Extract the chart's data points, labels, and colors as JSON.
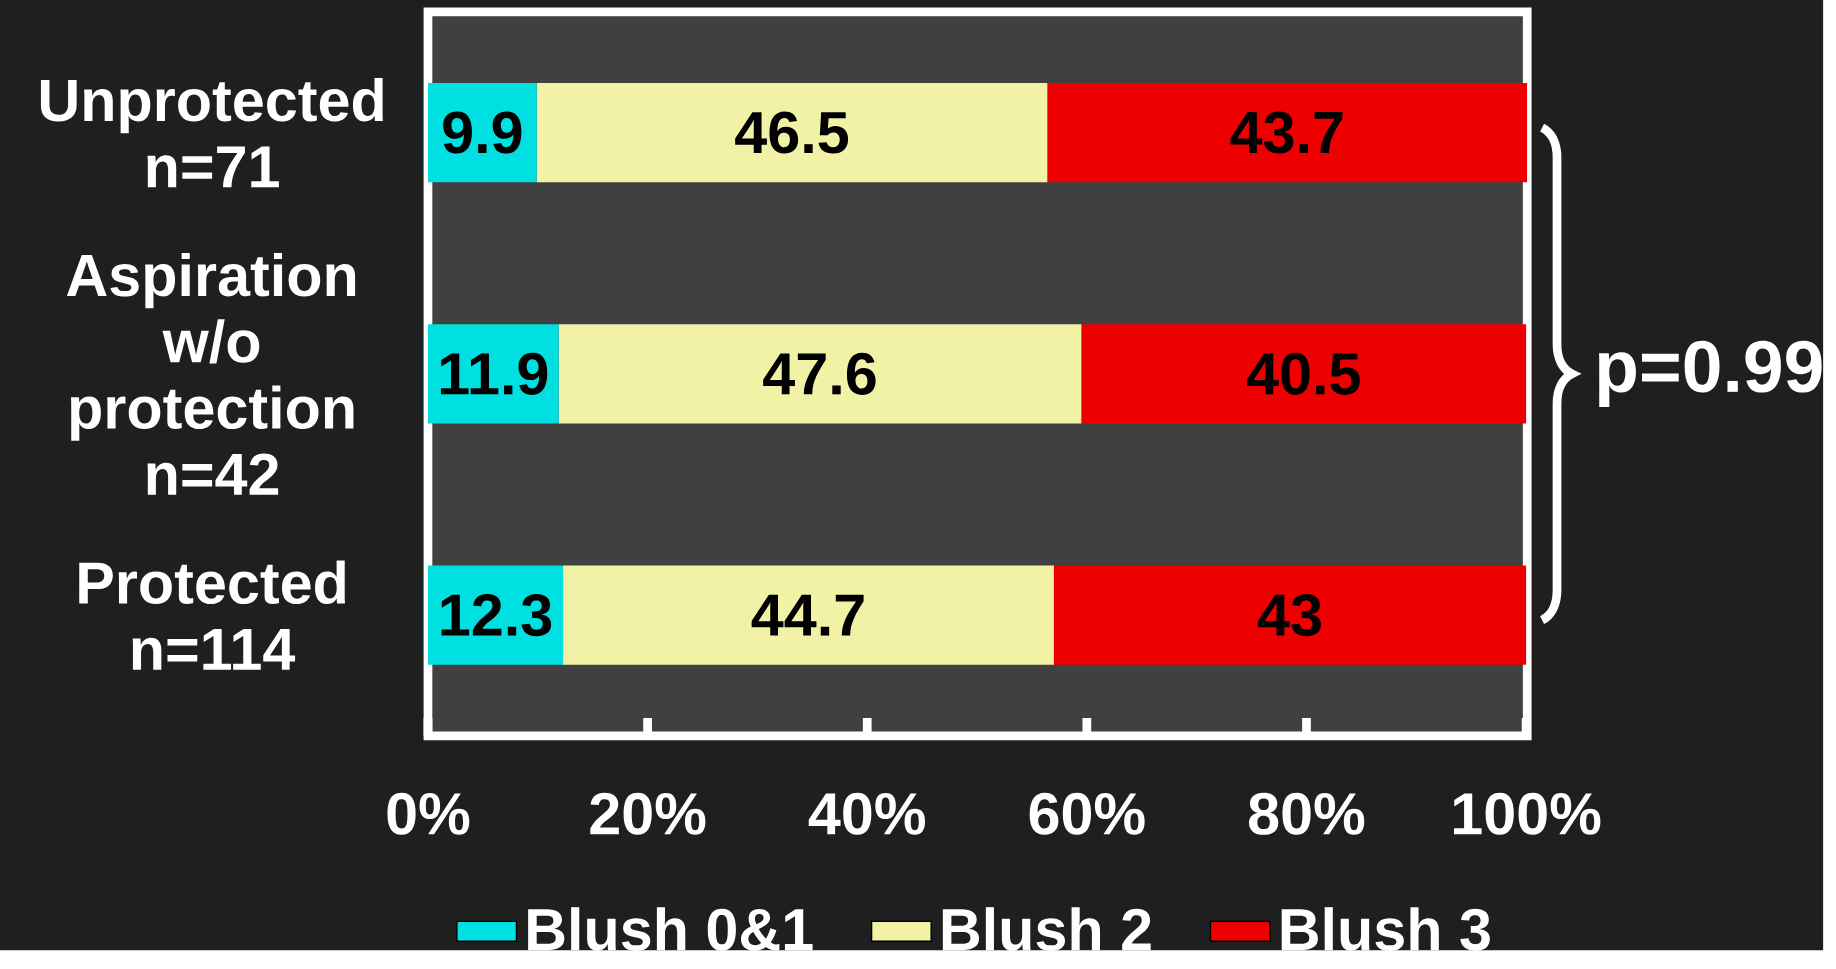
{
  "chart_data": {
    "type": "bar",
    "orientation": "horizontal",
    "stacked": true,
    "categories": [
      "Unprotected n=71",
      "Aspiration w/o protection n=42",
      "Protected n=114"
    ],
    "series": [
      {
        "name": "Blush 0&1",
        "color": "#00e0e0",
        "values": [
          9.9,
          11.9,
          12.3
        ]
      },
      {
        "name": "Blush 2",
        "color": "#f2f2a6",
        "values": [
          46.5,
          47.6,
          44.7
        ]
      },
      {
        "name": "Blush 3",
        "color": "#ee0000",
        "values": [
          43.7,
          40.5,
          43
        ]
      }
    ],
    "xlim": [
      0,
      100.1
    ],
    "xticks": [
      {
        "value": 0,
        "label": "0%"
      },
      {
        "value": 20,
        "label": "20%"
      },
      {
        "value": 40,
        "label": "40%"
      },
      {
        "value": 60,
        "label": "60%"
      },
      {
        "value": 80,
        "label": "80%"
      },
      {
        "value": 100,
        "label": "100%"
      }
    ],
    "data_labels": true,
    "legend": "bottom",
    "annotations": [
      "p=0.99"
    ]
  }
}
